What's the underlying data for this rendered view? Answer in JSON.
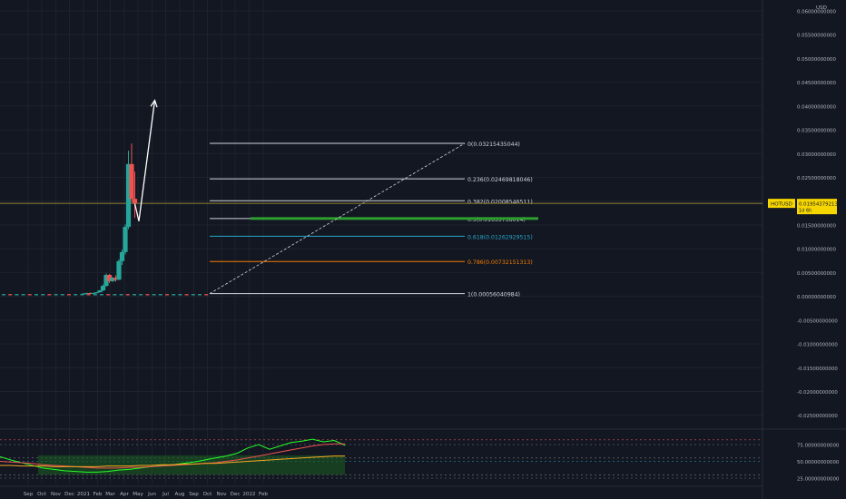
{
  "currency": "USD",
  "ticker": {
    "symbol": "HOTUSD",
    "price": "0.01954379213",
    "countdown": "1d 6h"
  },
  "colors": {
    "background": "#131722",
    "axis_text": "#b2b5be",
    "grid": "#1e222d",
    "bull": "#26a69a",
    "bear": "#ef5350",
    "fib_line": "#d1d4dc",
    "fib_05_band": "#2e9e2e",
    "fib_0618": "#26a6c9",
    "fib_0786": "#f57c00",
    "price_line": "#b6a33a",
    "price_tag": "#f5d600",
    "arrow": "#ffffff",
    "rsi_band": "#1b5e20",
    "rsi_line": "#26ff26",
    "rsi_signal": "#ef5350",
    "rsi_ma": "#f5a623"
  },
  "chart_data": [
    {
      "type": "candlestick",
      "title": "",
      "x": {
        "tick_labels": [
          "Sep",
          "Oct",
          "Nov",
          "Dec",
          "2021",
          "Feb",
          "Mar",
          "Apr",
          "May",
          "Jun",
          "Jul",
          "Aug",
          "Sep",
          "Oct",
          "Nov",
          "Dec",
          "2022",
          "Feb"
        ]
      },
      "y": {
        "ylim": [
          -0.027,
          0.061
        ],
        "tick_labels": [
          "0.06000000000",
          "0.05500000000",
          "0.05000000000",
          "0.04500000000",
          "0.04000000000",
          "0.03500000000",
          "0.03000000000",
          "0.02500000000",
          "0.02000000000",
          "0.01500000000",
          "0.01000000000",
          "0.00500000000",
          "0.00000000000",
          "-0.00500000000",
          "-0.01000000000",
          "-0.01500000000",
          "-0.02000000000",
          "-0.02500000000"
        ],
        "tick_values": [
          0.06,
          0.055,
          0.05,
          0.045,
          0.04,
          0.035,
          0.03,
          0.025,
          0.02,
          0.015,
          0.01,
          0.005,
          0,
          -0.005,
          -0.01,
          -0.015,
          -0.02,
          -0.025
        ]
      },
      "candles": [
        {
          "date": "2020-12-28",
          "open": 0.00055,
          "high": 0.00065,
          "low": 0.0004,
          "close": 0.0006
        },
        {
          "date": "2021-01-04",
          "open": 0.0006,
          "high": 0.00075,
          "low": 0.0005,
          "close": 0.00068
        },
        {
          "date": "2021-01-11",
          "open": 0.00068,
          "high": 0.0008,
          "low": 0.00058,
          "close": 0.00062
        },
        {
          "date": "2021-01-18",
          "open": 0.00062,
          "high": 0.00078,
          "low": 0.00055,
          "close": 0.0007
        },
        {
          "date": "2021-01-25",
          "open": 0.0007,
          "high": 0.0009,
          "low": 0.0006,
          "close": 0.00085
        },
        {
          "date": "2021-02-01",
          "open": 0.00085,
          "high": 0.0013,
          "low": 0.0008,
          "close": 0.00125
        },
        {
          "date": "2021-02-08",
          "open": 0.00125,
          "high": 0.0025,
          "low": 0.0011,
          "close": 0.0022
        },
        {
          "date": "2021-02-15",
          "open": 0.0022,
          "high": 0.0048,
          "low": 0.002,
          "close": 0.0045
        },
        {
          "date": "2021-02-22",
          "open": 0.0045,
          "high": 0.0047,
          "low": 0.0028,
          "close": 0.0032
        },
        {
          "date": "2021-03-01",
          "open": 0.0032,
          "high": 0.0041,
          "low": 0.003,
          "close": 0.0039
        },
        {
          "date": "2021-03-08",
          "open": 0.0039,
          "high": 0.0044,
          "low": 0.0031,
          "close": 0.0035
        },
        {
          "date": "2021-03-15",
          "open": 0.0035,
          "high": 0.0078,
          "low": 0.0034,
          "close": 0.0074
        },
        {
          "date": "2021-03-22",
          "open": 0.0074,
          "high": 0.0098,
          "low": 0.0066,
          "close": 0.0093
        },
        {
          "date": "2021-03-29",
          "open": 0.0093,
          "high": 0.0151,
          "low": 0.0088,
          "close": 0.0146
        },
        {
          "date": "2021-04-05",
          "open": 0.0146,
          "high": 0.0306,
          "low": 0.0141,
          "close": 0.0278
        },
        {
          "date": "2021-04-12",
          "open": 0.0278,
          "high": 0.0321,
          "low": 0.0198,
          "close": 0.0205
        },
        {
          "date": "2021-04-19",
          "open": 0.0205,
          "high": 0.0262,
          "low": 0.0165,
          "close": 0.0195
        }
      ],
      "fibonacci": [
        {
          "label": "0(0.03215435044)",
          "level": 0.03215435044
        },
        {
          "label": "0.236(0.02469818046)",
          "level": 0.02469818046
        },
        {
          "label": "0.382(0.02008546511)",
          "level": 0.02008546511
        },
        {
          "label": "0.5(0.01635738014)",
          "level": 0.01635738014
        },
        {
          "label": "0.618(0.01262929515)",
          "level": 0.01262929515
        },
        {
          "label": "0.786(0.00732151313)",
          "level": 0.00732151313
        },
        {
          "label": "1(0.00056040984)",
          "level": 0.00056040984
        }
      ],
      "projection": [
        {
          "date": "2021-04-19",
          "value": 0.0195
        },
        {
          "date": "2021-04-28",
          "value": 0.0158
        },
        {
          "date": "2021-06-02",
          "value": 0.0412
        }
      ]
    },
    {
      "type": "line",
      "title": "",
      "ylim": [
        20,
        85
      ],
      "y_tick_labels": [
        "75.00000000000",
        "50.00000000000",
        "25.00000000000"
      ],
      "y_tick_values": [
        75,
        50,
        25
      ],
      "series": [
        {
          "values": [
            57,
            52,
            48,
            44,
            40,
            38,
            36,
            35,
            34,
            34,
            35,
            37,
            38,
            40,
            42,
            44,
            45,
            47,
            49,
            52,
            55,
            58,
            62,
            70,
            75,
            68,
            73,
            78,
            80,
            83,
            79,
            81,
            74
          ]
        },
        {
          "values": [
            50,
            49,
            48,
            47,
            45,
            44,
            43,
            42,
            41,
            40,
            40,
            40,
            41,
            41,
            42,
            43,
            44,
            45,
            46,
            47,
            48,
            50,
            52,
            55,
            58,
            61,
            64,
            67,
            70,
            73,
            75,
            76,
            76
          ]
        },
        {
          "values": [
            44,
            44,
            43,
            43,
            43,
            42,
            42,
            42,
            42,
            42,
            43,
            43,
            43,
            44,
            44,
            45,
            45,
            46,
            46,
            47,
            47,
            48,
            49,
            50,
            51,
            52,
            53,
            54,
            55,
            56,
            57,
            58,
            58
          ]
        }
      ]
    }
  ]
}
